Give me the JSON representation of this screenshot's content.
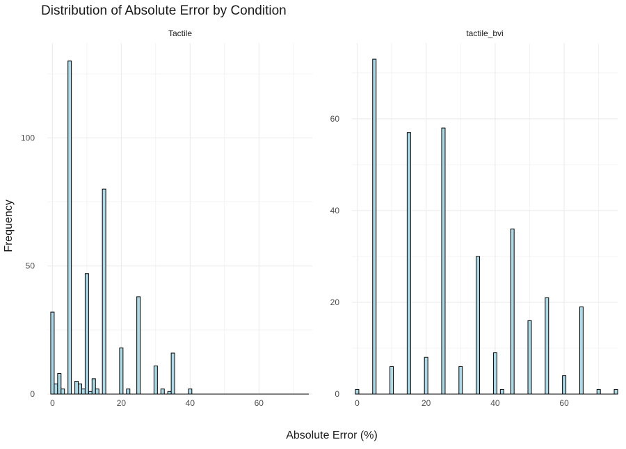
{
  "chart_data": {
    "type": "bar",
    "title": "Distribution of Absolute Error by Condition",
    "xlabel": "Absolute Error (%)",
    "ylabel": "Frequency",
    "grid": true,
    "style": {
      "bar_fill": "#add8e6",
      "bar_stroke": "#000000",
      "grid_color": "#ebebeb",
      "background": "#ffffff"
    },
    "bin_width": 1,
    "panels": [
      {
        "name": "Tactile",
        "xlim": [
          -1.5,
          75.5
        ],
        "ylim": [
          0,
          137
        ],
        "x_ticks": [
          0,
          20,
          40,
          60
        ],
        "y_ticks": [
          0,
          50,
          100
        ],
        "bars": [
          {
            "x": 0,
            "y": 32
          },
          {
            "x": 1,
            "y": 4
          },
          {
            "x": 2,
            "y": 8
          },
          {
            "x": 3,
            "y": 2
          },
          {
            "x": 5,
            "y": 130
          },
          {
            "x": 7,
            "y": 5
          },
          {
            "x": 8,
            "y": 4
          },
          {
            "x": 9,
            "y": 2
          },
          {
            "x": 10,
            "y": 47
          },
          {
            "x": 11,
            "y": 1
          },
          {
            "x": 12,
            "y": 6
          },
          {
            "x": 13,
            "y": 2
          },
          {
            "x": 15,
            "y": 80
          },
          {
            "x": 20,
            "y": 18
          },
          {
            "x": 22,
            "y": 2
          },
          {
            "x": 25,
            "y": 38
          },
          {
            "x": 30,
            "y": 11
          },
          {
            "x": 32,
            "y": 2
          },
          {
            "x": 34,
            "y": 1
          },
          {
            "x": 35,
            "y": 16
          },
          {
            "x": 40,
            "y": 2
          }
        ]
      },
      {
        "name": "tactile_bvi",
        "xlim": [
          -1.5,
          75.5
        ],
        "ylim": [
          0,
          76.5
        ],
        "x_ticks": [
          0,
          20,
          40,
          60
        ],
        "y_ticks": [
          0,
          20,
          40,
          60
        ],
        "bars": [
          {
            "x": 0,
            "y": 1
          },
          {
            "x": 5,
            "y": 73
          },
          {
            "x": 10,
            "y": 6
          },
          {
            "x": 15,
            "y": 57
          },
          {
            "x": 20,
            "y": 8
          },
          {
            "x": 25,
            "y": 58
          },
          {
            "x": 30,
            "y": 6
          },
          {
            "x": 35,
            "y": 30
          },
          {
            "x": 40,
            "y": 9
          },
          {
            "x": 42,
            "y": 1
          },
          {
            "x": 45,
            "y": 36
          },
          {
            "x": 50,
            "y": 16
          },
          {
            "x": 55,
            "y": 21
          },
          {
            "x": 60,
            "y": 4
          },
          {
            "x": 65,
            "y": 19
          },
          {
            "x": 70,
            "y": 1
          },
          {
            "x": 75,
            "y": 1
          }
        ]
      }
    ]
  }
}
